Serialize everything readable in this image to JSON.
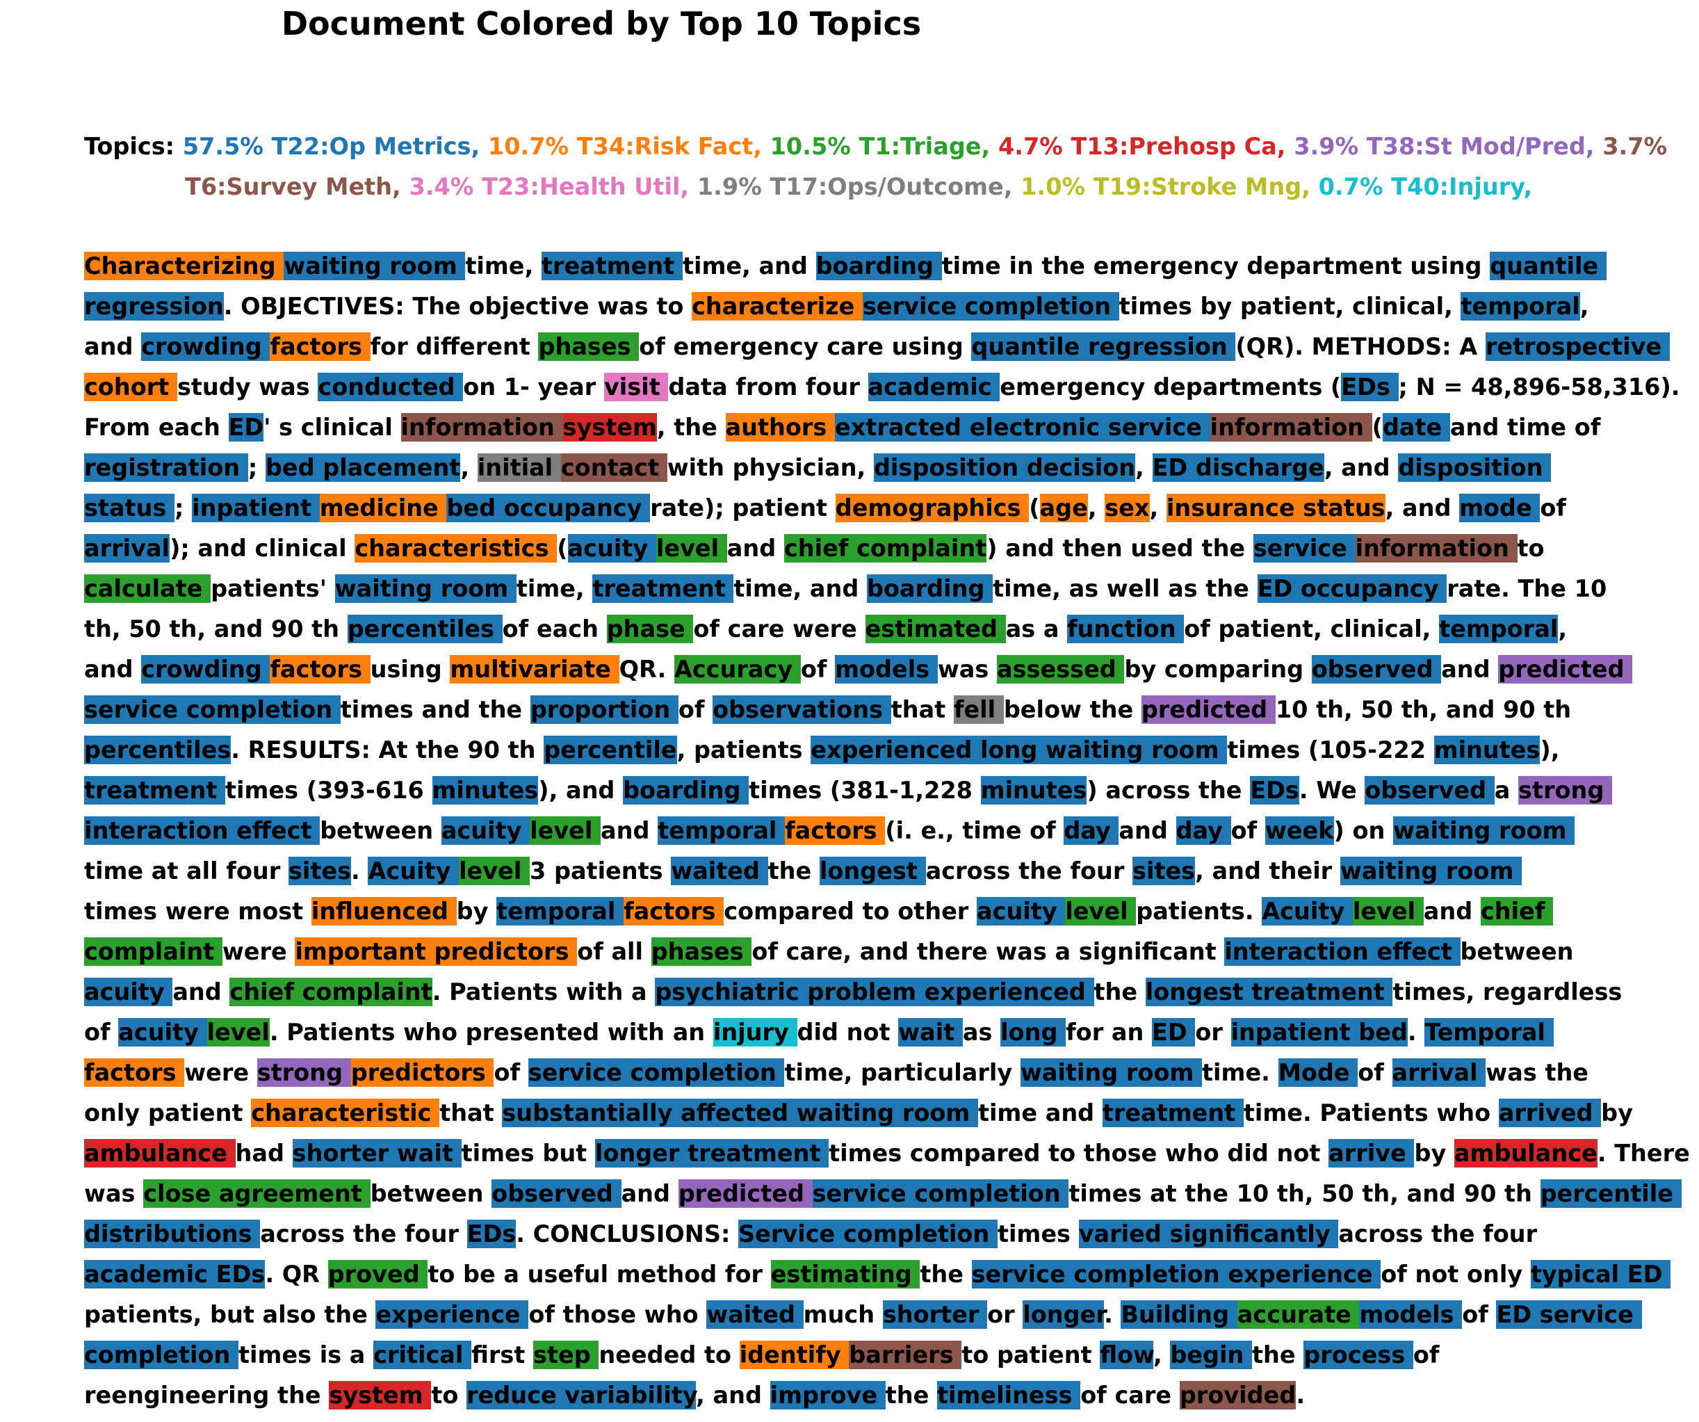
{
  "title": "Document Colored by Top 10 Topics",
  "topics_label": "Topics:",
  "topic_colors": {
    "T22": "#1f77b4",
    "T34": "#ff7f0e",
    "T1": "#2ca02c",
    "T13": "#d62728",
    "T38": "#9467bd",
    "T6": "#8c564b",
    "T23": "#e377c2",
    "T17": "#7f7f7f",
    "T19": "#bcbd22",
    "T40": "#17becf"
  },
  "topics": [
    {
      "id": "T22",
      "text": "57.5% T22:Op Metrics,"
    },
    {
      "id": "T34",
      "text": "10.7% T34:Risk Fact,"
    },
    {
      "id": "T1",
      "text": "10.5% T1:Triage,"
    },
    {
      "id": "T13",
      "text": "4.7% T13:Prehosp Ca,"
    },
    {
      "id": "T38",
      "text": "3.9% T38:St Mod/Pred,"
    },
    {
      "id": "T6",
      "text": "3.7% T6:Survey Meth,"
    },
    {
      "id": "T23",
      "text": "3.4% T23:Health Util,"
    },
    {
      "id": "T17",
      "text": "1.9% T17:Ops/Outcome,"
    },
    {
      "id": "T19",
      "text": "1.0% T19:Stroke Mng,"
    },
    {
      "id": "T40",
      "text": "0.7% T40:Injury,"
    }
  ],
  "lines": [
    [
      [
        "Characterizing ",
        "t34"
      ],
      [
        "waiting room ",
        "t22"
      ],
      [
        "time, ",
        ""
      ],
      [
        "treatment ",
        "t22"
      ],
      [
        "time, and ",
        ""
      ],
      [
        "boarding ",
        "t22"
      ],
      [
        "time in the emergency department using ",
        ""
      ],
      [
        "quantile ",
        "t22"
      ]
    ],
    [
      [
        "regression",
        "t22"
      ],
      [
        ". OBJECTIVES: The objective was to ",
        ""
      ],
      [
        "characterize ",
        "t34"
      ],
      [
        "service completion ",
        "t22"
      ],
      [
        "times by patient, clinical, ",
        ""
      ],
      [
        "temporal",
        "t22"
      ],
      [
        ",",
        ""
      ]
    ],
    [
      [
        "and ",
        ""
      ],
      [
        "crowding ",
        "t22"
      ],
      [
        "factors ",
        "t34"
      ],
      [
        "for different ",
        ""
      ],
      [
        "phases ",
        "t1"
      ],
      [
        "of emergency care using ",
        ""
      ],
      [
        "quantile regression ",
        "t22"
      ],
      [
        "(QR). METHODS: A ",
        ""
      ],
      [
        "retrospective ",
        "t22"
      ]
    ],
    [
      [
        "cohort ",
        "t34"
      ],
      [
        "study was ",
        ""
      ],
      [
        "conducted ",
        "t22"
      ],
      [
        "on 1- year ",
        ""
      ],
      [
        "visit ",
        "t23"
      ],
      [
        "data from four ",
        ""
      ],
      [
        "academic ",
        "t22"
      ],
      [
        "emergency departments (",
        ""
      ],
      [
        "EDs ",
        "t22"
      ],
      [
        "; N = 48,896-58,316).",
        ""
      ]
    ],
    [
      [
        "From each ",
        ""
      ],
      [
        "ED",
        "t22"
      ],
      [
        "' s clinical ",
        ""
      ],
      [
        "information ",
        "t6"
      ],
      [
        "system",
        "t13"
      ],
      [
        ", the ",
        ""
      ],
      [
        "authors ",
        "t34"
      ],
      [
        "extracted electronic service ",
        "t22"
      ],
      [
        "information ",
        "t6"
      ],
      [
        "(",
        ""
      ],
      [
        "date ",
        "t22"
      ],
      [
        "and time of",
        ""
      ]
    ],
    [
      [
        "registration ",
        "t22"
      ],
      [
        "; ",
        ""
      ],
      [
        "bed placement",
        "t22"
      ],
      [
        ", ",
        ""
      ],
      [
        "initial ",
        "t17"
      ],
      [
        "contact ",
        "t6"
      ],
      [
        "with physician, ",
        ""
      ],
      [
        "disposition decision",
        "t22"
      ],
      [
        ", ",
        ""
      ],
      [
        "ED discharge",
        "t22"
      ],
      [
        ", and ",
        ""
      ],
      [
        "disposition ",
        "t22"
      ]
    ],
    [
      [
        "status ",
        "t22"
      ],
      [
        "; ",
        ""
      ],
      [
        "inpatient ",
        "t22"
      ],
      [
        "medicine ",
        "t34"
      ],
      [
        "bed occupancy ",
        "t22"
      ],
      [
        "rate); patient ",
        ""
      ],
      [
        "demographics ",
        "t34"
      ],
      [
        "(",
        ""
      ],
      [
        "age",
        "t34"
      ],
      [
        ", ",
        ""
      ],
      [
        "sex",
        "t34"
      ],
      [
        ", ",
        ""
      ],
      [
        "insurance status",
        "t34"
      ],
      [
        ", and ",
        ""
      ],
      [
        "mode ",
        "t22"
      ],
      [
        "of",
        ""
      ]
    ],
    [
      [
        "arrival",
        "t22"
      ],
      [
        "); and clinical ",
        ""
      ],
      [
        "characteristics ",
        "t34"
      ],
      [
        "(",
        ""
      ],
      [
        "acuity ",
        "t22"
      ],
      [
        "level ",
        "t1"
      ],
      [
        "and ",
        ""
      ],
      [
        "chief complaint",
        "t1"
      ],
      [
        ") and then used the ",
        ""
      ],
      [
        "service ",
        "t22"
      ],
      [
        "information ",
        "t6"
      ],
      [
        "to",
        ""
      ]
    ],
    [
      [
        "calculate ",
        "t1"
      ],
      [
        "patients' ",
        ""
      ],
      [
        "waiting room ",
        "t22"
      ],
      [
        "time, ",
        ""
      ],
      [
        "treatment ",
        "t22"
      ],
      [
        "time, and ",
        ""
      ],
      [
        "boarding ",
        "t22"
      ],
      [
        "time, as well as the ",
        ""
      ],
      [
        "ED occupancy ",
        "t22"
      ],
      [
        "rate. The 10",
        ""
      ]
    ],
    [
      [
        "th, 50 th, and 90 th ",
        ""
      ],
      [
        "percentiles ",
        "t22"
      ],
      [
        "of each ",
        ""
      ],
      [
        "phase ",
        "t1"
      ],
      [
        "of care were ",
        ""
      ],
      [
        "estimated ",
        "t1"
      ],
      [
        "as a ",
        ""
      ],
      [
        "function ",
        "t22"
      ],
      [
        "of patient, clinical, ",
        ""
      ],
      [
        "temporal",
        "t22"
      ],
      [
        ",",
        ""
      ]
    ],
    [
      [
        "and ",
        ""
      ],
      [
        "crowding ",
        "t22"
      ],
      [
        "factors ",
        "t34"
      ],
      [
        "using ",
        ""
      ],
      [
        "multivariate ",
        "t34"
      ],
      [
        "QR. ",
        ""
      ],
      [
        "Accuracy ",
        "t1"
      ],
      [
        "of ",
        ""
      ],
      [
        "models ",
        "t22"
      ],
      [
        "was ",
        ""
      ],
      [
        "assessed ",
        "t1"
      ],
      [
        "by comparing ",
        ""
      ],
      [
        "observed ",
        "t22"
      ],
      [
        "and ",
        ""
      ],
      [
        "predicted ",
        "t38"
      ]
    ],
    [
      [
        "service completion ",
        "t22"
      ],
      [
        "times and the ",
        ""
      ],
      [
        "proportion ",
        "t22"
      ],
      [
        "of ",
        ""
      ],
      [
        "observations ",
        "t22"
      ],
      [
        "that ",
        ""
      ],
      [
        "fell ",
        "t17"
      ],
      [
        "below the ",
        ""
      ],
      [
        "predicted ",
        "t38"
      ],
      [
        "10 th, 50 th, and 90 th",
        ""
      ]
    ],
    [
      [
        "percentiles",
        "t22"
      ],
      [
        ". RESULTS: At the 90 th ",
        ""
      ],
      [
        "percentile",
        "t22"
      ],
      [
        ", patients ",
        ""
      ],
      [
        "experienced long waiting room ",
        "t22"
      ],
      [
        "times (105-222 ",
        ""
      ],
      [
        "minutes",
        "t22"
      ],
      [
        "),",
        ""
      ]
    ],
    [
      [
        "treatment ",
        "t22"
      ],
      [
        "times (393-616 ",
        ""
      ],
      [
        "minutes",
        "t22"
      ],
      [
        "), and ",
        ""
      ],
      [
        "boarding ",
        "t22"
      ],
      [
        "times (381-1,228 ",
        ""
      ],
      [
        "minutes",
        "t22"
      ],
      [
        ") across the ",
        ""
      ],
      [
        "EDs",
        "t22"
      ],
      [
        ". We ",
        ""
      ],
      [
        "observed ",
        "t22"
      ],
      [
        "a ",
        ""
      ],
      [
        "strong ",
        "t38"
      ]
    ],
    [
      [
        "interaction effect ",
        "t22"
      ],
      [
        "between ",
        ""
      ],
      [
        "acuity ",
        "t22"
      ],
      [
        "level ",
        "t1"
      ],
      [
        "and ",
        ""
      ],
      [
        "temporal ",
        "t22"
      ],
      [
        "factors ",
        "t34"
      ],
      [
        "(i. e., time of ",
        ""
      ],
      [
        "day ",
        "t22"
      ],
      [
        "and ",
        ""
      ],
      [
        "day ",
        "t22"
      ],
      [
        "of ",
        ""
      ],
      [
        "week",
        "t22"
      ],
      [
        ") on ",
        ""
      ],
      [
        "waiting room ",
        "t22"
      ]
    ],
    [
      [
        "time at all four ",
        ""
      ],
      [
        "sites",
        "t22"
      ],
      [
        ". ",
        ""
      ],
      [
        "Acuity ",
        "t22"
      ],
      [
        "level ",
        "t1"
      ],
      [
        "3 patients ",
        ""
      ],
      [
        "waited ",
        "t22"
      ],
      [
        "the ",
        ""
      ],
      [
        "longest ",
        "t22"
      ],
      [
        "across the four ",
        ""
      ],
      [
        "sites",
        "t22"
      ],
      [
        ", and their ",
        ""
      ],
      [
        "waiting room ",
        "t22"
      ]
    ],
    [
      [
        "times were most ",
        ""
      ],
      [
        "influenced ",
        "t34"
      ],
      [
        "by ",
        ""
      ],
      [
        "temporal ",
        "t22"
      ],
      [
        "factors ",
        "t34"
      ],
      [
        "compared to other ",
        ""
      ],
      [
        "acuity ",
        "t22"
      ],
      [
        "level ",
        "t1"
      ],
      [
        "patients. ",
        ""
      ],
      [
        "Acuity ",
        "t22"
      ],
      [
        "level ",
        "t1"
      ],
      [
        "and ",
        ""
      ],
      [
        "chief ",
        "t1"
      ]
    ],
    [
      [
        "complaint ",
        "t1"
      ],
      [
        "were ",
        ""
      ],
      [
        "important predictors ",
        "t34"
      ],
      [
        "of all ",
        ""
      ],
      [
        "phases ",
        "t1"
      ],
      [
        "of care, and there was a significant ",
        ""
      ],
      [
        "interaction effect ",
        "t22"
      ],
      [
        "between",
        ""
      ]
    ],
    [
      [
        "acuity ",
        "t22"
      ],
      [
        "and ",
        ""
      ],
      [
        "chief complaint",
        "t1"
      ],
      [
        ". Patients with a ",
        ""
      ],
      [
        "psychiatric problem experienced ",
        "t22"
      ],
      [
        "the ",
        ""
      ],
      [
        "longest treatment ",
        "t22"
      ],
      [
        "times, regardless",
        ""
      ]
    ],
    [
      [
        "of ",
        ""
      ],
      [
        "acuity ",
        "t22"
      ],
      [
        "level",
        "t1"
      ],
      [
        ". Patients who presented with an ",
        ""
      ],
      [
        "injury ",
        "t40"
      ],
      [
        "did not ",
        ""
      ],
      [
        "wait ",
        "t22"
      ],
      [
        "as ",
        ""
      ],
      [
        "long ",
        "t22"
      ],
      [
        "for an ",
        ""
      ],
      [
        "ED ",
        "t22"
      ],
      [
        "or ",
        ""
      ],
      [
        "inpatient bed",
        "t22"
      ],
      [
        ". ",
        ""
      ],
      [
        "Temporal ",
        "t22"
      ]
    ],
    [
      [
        "factors ",
        "t34"
      ],
      [
        "were ",
        ""
      ],
      [
        "strong ",
        "t38"
      ],
      [
        "predictors ",
        "t34"
      ],
      [
        "of ",
        ""
      ],
      [
        "service completion ",
        "t22"
      ],
      [
        "time, particularly ",
        ""
      ],
      [
        "waiting room ",
        "t22"
      ],
      [
        "time. ",
        ""
      ],
      [
        "Mode ",
        "t22"
      ],
      [
        "of ",
        ""
      ],
      [
        "arrival ",
        "t22"
      ],
      [
        "was the",
        ""
      ]
    ],
    [
      [
        "only patient ",
        ""
      ],
      [
        "characteristic ",
        "t34"
      ],
      [
        "that ",
        ""
      ],
      [
        "substantially affected waiting room ",
        "t22"
      ],
      [
        "time and ",
        ""
      ],
      [
        "treatment ",
        "t22"
      ],
      [
        "time. Patients who ",
        ""
      ],
      [
        "arrived ",
        "t22"
      ],
      [
        "by",
        ""
      ]
    ],
    [
      [
        "ambulance ",
        "t13"
      ],
      [
        "had ",
        ""
      ],
      [
        "shorter wait ",
        "t22"
      ],
      [
        "times but ",
        ""
      ],
      [
        "longer treatment ",
        "t22"
      ],
      [
        "times compared to those who did not ",
        ""
      ],
      [
        "arrive ",
        "t22"
      ],
      [
        "by ",
        ""
      ],
      [
        "ambulance",
        "t13"
      ],
      [
        ". There",
        ""
      ]
    ],
    [
      [
        "was ",
        ""
      ],
      [
        "close agreement ",
        "t1"
      ],
      [
        "between ",
        ""
      ],
      [
        "observed ",
        "t22"
      ],
      [
        "and ",
        ""
      ],
      [
        "predicted ",
        "t38"
      ],
      [
        "service completion ",
        "t22"
      ],
      [
        "times at the 10 th, 50 th, and 90 th ",
        ""
      ],
      [
        "percentile ",
        "t22"
      ]
    ],
    [
      [
        "distributions ",
        "t22"
      ],
      [
        "across the four ",
        ""
      ],
      [
        "EDs",
        "t22"
      ],
      [
        ". CONCLUSIONS: ",
        ""
      ],
      [
        "Service completion ",
        "t22"
      ],
      [
        "times ",
        ""
      ],
      [
        "varied significantly ",
        "t22"
      ],
      [
        "across the four",
        ""
      ]
    ],
    [
      [
        "academic EDs",
        "t22"
      ],
      [
        ". QR ",
        ""
      ],
      [
        "proved ",
        "t1"
      ],
      [
        "to be a useful method for ",
        ""
      ],
      [
        "estimating ",
        "t1"
      ],
      [
        "the ",
        ""
      ],
      [
        "service completion experience ",
        "t22"
      ],
      [
        "of not only ",
        ""
      ],
      [
        "typical ED ",
        "t22"
      ]
    ],
    [
      [
        "patients, but also the ",
        ""
      ],
      [
        "experience ",
        "t22"
      ],
      [
        "of those who ",
        ""
      ],
      [
        "waited ",
        "t22"
      ],
      [
        "much ",
        ""
      ],
      [
        "shorter ",
        "t22"
      ],
      [
        "or ",
        ""
      ],
      [
        "longer",
        "t22"
      ],
      [
        ". ",
        ""
      ],
      [
        "Building ",
        "t22"
      ],
      [
        "accurate ",
        "t1"
      ],
      [
        "models ",
        "t22"
      ],
      [
        "of ",
        ""
      ],
      [
        "ED service ",
        "t22"
      ]
    ],
    [
      [
        "completion ",
        "t22"
      ],
      [
        "times is a ",
        ""
      ],
      [
        "critical ",
        "t22"
      ],
      [
        "first ",
        ""
      ],
      [
        "step ",
        "t1"
      ],
      [
        "needed to ",
        ""
      ],
      [
        "identify ",
        "t34"
      ],
      [
        "barriers ",
        "t6"
      ],
      [
        "to patient ",
        ""
      ],
      [
        "flow",
        "t22"
      ],
      [
        ", ",
        ""
      ],
      [
        "begin ",
        "t22"
      ],
      [
        "the ",
        ""
      ],
      [
        "process ",
        "t22"
      ],
      [
        "of",
        ""
      ]
    ],
    [
      [
        "reengineering the ",
        ""
      ],
      [
        "system ",
        "t13"
      ],
      [
        "to ",
        ""
      ],
      [
        "reduce variability",
        "t22"
      ],
      [
        ", and ",
        ""
      ],
      [
        "improve ",
        "t22"
      ],
      [
        "the ",
        ""
      ],
      [
        "timeliness ",
        "t22"
      ],
      [
        "of care ",
        ""
      ],
      [
        "provided",
        "t6"
      ],
      [
        ".",
        ""
      ]
    ]
  ]
}
